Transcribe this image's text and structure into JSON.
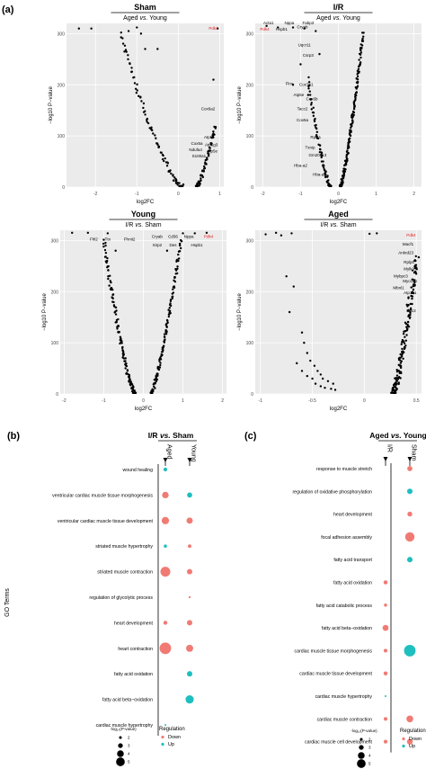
{
  "figure": {
    "panel_labels": [
      "(a)",
      "(b)",
      "(c)"
    ],
    "legend": {
      "size_title": "-log₁₀(P-value)",
      "size_levels": [
        2,
        3,
        4,
        5
      ],
      "regulation_title": "Regulation",
      "regulation_items": [
        {
          "label": "Down",
          "color": "#f07b74"
        },
        {
          "label": "Up",
          "color": "#1fbfbf"
        }
      ]
    },
    "colors": {
      "down": "#f07b74",
      "up": "#1fbfbf",
      "plot_bg": "#ebebeb",
      "grid": "#ffffff",
      "highlight": "#e41a1c"
    }
  },
  "chart_data": [
    {
      "type": "scatter",
      "id": "volcano-sham",
      "title": "Sham",
      "subtitle": "Aged vs. Young",
      "xlabel": "log2FC",
      "ylabel": "−log10 P−value",
      "xlim": [
        -2.7,
        1.1
      ],
      "ylim": [
        0,
        320
      ],
      "xticks": [
        -2,
        -1,
        0,
        1
      ],
      "yticks": [
        0,
        100,
        200,
        300
      ],
      "left_branch": {
        "x_start": -1.4,
        "x_end": 0.1,
        "count": 85,
        "y_max": 300
      },
      "right_branch": {
        "x_start": 0.45,
        "x_end": 0.9,
        "count": 60,
        "y_max": 120
      },
      "extra_points": [
        [
          -2.4,
          310
        ],
        [
          -2.1,
          310
        ],
        [
          -1.2,
          305
        ],
        [
          -1.0,
          312
        ],
        [
          -0.9,
          300
        ],
        [
          0.95,
          310
        ],
        [
          0.85,
          210
        ],
        [
          -0.8,
          270
        ],
        [
          -0.5,
          270
        ]
      ],
      "labels": [
        {
          "text": "Pdk4",
          "x": 0.85,
          "y": 308,
          "highlight": true
        },
        {
          "text": "Cox6a2",
          "x": 0.72,
          "y": 150
        },
        {
          "text": "Atp5e",
          "x": 0.75,
          "y": 95
        },
        {
          "text": "Cox5a",
          "x": 0.45,
          "y": 83
        },
        {
          "text": "Atp5g3",
          "x": 0.8,
          "y": 80
        },
        {
          "text": "Ndufa4",
          "x": 0.42,
          "y": 70
        },
        {
          "text": "Atp5e",
          "x": 0.82,
          "y": 68
        },
        {
          "text": "S100a1",
          "x": 0.5,
          "y": 58
        }
      ]
    },
    {
      "type": "scatter",
      "id": "volcano-ir",
      "title": "I/R",
      "subtitle": "Aged vs. Young",
      "xlabel": "log2FC",
      "ylabel": "−log10 P−value",
      "xlim": [
        -2.2,
        2.2
      ],
      "ylim": [
        0,
        320
      ],
      "xticks": [
        -2,
        -1,
        0,
        1,
        2
      ],
      "yticks": [
        0,
        100,
        200,
        300
      ],
      "left_branch": {
        "x_start": -0.8,
        "x_end": -0.2,
        "count": 70,
        "y_max": 210
      },
      "right_branch": {
        "x_start": 0.05,
        "x_end": 0.65,
        "count": 170,
        "y_max": 300
      },
      "extra_points": [
        [
          -1.9,
          315
        ],
        [
          -1.6,
          312
        ],
        [
          -1.2,
          312
        ],
        [
          -0.9,
          310
        ],
        [
          -0.6,
          305
        ],
        [
          -1.0,
          240
        ],
        [
          -1.2,
          200
        ],
        [
          -0.5,
          260
        ],
        [
          -0.8,
          180
        ]
      ],
      "labels": [
        {
          "text": "Acta1",
          "x": -1.85,
          "y": 318
        },
        {
          "text": "Nppa",
          "x": -1.3,
          "y": 318
        },
        {
          "text": "Fabp3",
          "x": -0.8,
          "y": 318
        },
        {
          "text": "Pdk4",
          "x": -1.95,
          "y": 306,
          "highlight": true
        },
        {
          "text": "Hspb1",
          "x": -1.5,
          "y": 306
        },
        {
          "text": "Cryab",
          "x": -0.95,
          "y": 310
        },
        {
          "text": "Uqcr11",
          "x": -0.9,
          "y": 275
        },
        {
          "text": "Csrp3",
          "x": -0.8,
          "y": 255
        },
        {
          "text": "Flnc",
          "x": -1.3,
          "y": 200
        },
        {
          "text": "Cox7a1",
          "x": -0.85,
          "y": 198
        },
        {
          "text": "Atp5e",
          "x": -1.05,
          "y": 178
        },
        {
          "text": "Cox6b",
          "x": -0.7,
          "y": 170
        },
        {
          "text": "Tacc2",
          "x": -0.95,
          "y": 150
        },
        {
          "text": "Cox5a",
          "x": -0.95,
          "y": 128
        },
        {
          "text": "Rpl41",
          "x": -0.6,
          "y": 95
        },
        {
          "text": "Txnip",
          "x": -0.75,
          "y": 75
        },
        {
          "text": "Gm20513",
          "x": -0.55,
          "y": 60
        },
        {
          "text": "Hba-a2",
          "x": -1.0,
          "y": 40
        },
        {
          "text": "Hba-a1",
          "x": -0.5,
          "y": 22
        }
      ]
    },
    {
      "type": "scatter",
      "id": "volcano-young",
      "title": "Young",
      "subtitle": "I/R vs. Sham",
      "xlabel": "log2FC",
      "ylabel": "−log10 P−value",
      "xlim": [
        -2.1,
        2.1
      ],
      "ylim": [
        0,
        320
      ],
      "xticks": [
        -2,
        -1,
        0,
        1,
        2
      ],
      "yticks": [
        0,
        100,
        200,
        300
      ],
      "left_branch": {
        "x_start": -1.0,
        "x_end": -0.2,
        "count": 130,
        "y_max": 300
      },
      "right_branch": {
        "x_start": 0.2,
        "x_end": 0.95,
        "count": 130,
        "y_max": 300
      },
      "extra_points": [
        [
          -1.8,
          315
        ],
        [
          -1.4,
          315
        ],
        [
          -0.9,
          314
        ],
        [
          1.0,
          314
        ],
        [
          1.3,
          314
        ],
        [
          1.6,
          315
        ],
        [
          -0.7,
          280
        ],
        [
          0.6,
          280
        ]
      ],
      "labels": [
        {
          "text": "Fhl2",
          "x": -1.25,
          "y": 300
        },
        {
          "text": "Ttn",
          "x": -0.9,
          "y": 300
        },
        {
          "text": "Fhnit2",
          "x": -0.35,
          "y": 300
        },
        {
          "text": "Cryab",
          "x": 0.35,
          "y": 305
        },
        {
          "text": "Cd36",
          "x": 0.75,
          "y": 305
        },
        {
          "text": "Nppa",
          "x": 1.15,
          "y": 305
        },
        {
          "text": "Pdk4",
          "x": 1.65,
          "y": 305,
          "highlight": true
        },
        {
          "text": "Xirp2",
          "x": 0.35,
          "y": 288
        },
        {
          "text": "Des",
          "x": 0.75,
          "y": 288
        },
        {
          "text": "Hspb1",
          "x": 1.35,
          "y": 288
        }
      ]
    },
    {
      "type": "scatter",
      "id": "volcano-aged",
      "title": "Aged",
      "subtitle": "I/R vs. Sham",
      "xlabel": "log2FC",
      "ylabel": "−log10 P−value",
      "xlim": [
        -1.05,
        0.55
      ],
      "ylim": [
        0,
        320
      ],
      "xticks": [
        -1.0,
        -0.5,
        0.0,
        0.5
      ],
      "yticks": [
        0,
        100,
        200,
        300
      ],
      "left_branch": {
        "x_start": -0.4,
        "x_end": -0.3,
        "count": 0,
        "y_max": 0
      },
      "right_branch": {
        "x_start": 0.28,
        "x_end": 0.5,
        "count": 160,
        "y_max": 270
      },
      "extra_points": [
        [
          -0.95,
          312
        ],
        [
          -0.85,
          315
        ],
        [
          -0.8,
          310
        ],
        [
          -0.7,
          314
        ],
        [
          -0.75,
          230
        ],
        [
          -0.68,
          210
        ],
        [
          -0.72,
          160
        ],
        [
          -0.6,
          120
        ],
        [
          -0.58,
          100
        ],
        [
          -0.55,
          80
        ],
        [
          -0.52,
          65
        ],
        [
          -0.48,
          55
        ],
        [
          -0.45,
          45
        ],
        [
          -0.42,
          38
        ],
        [
          -0.4,
          30
        ],
        [
          -0.35,
          25
        ],
        [
          -0.3,
          20
        ],
        [
          -0.5,
          30
        ],
        [
          -0.47,
          20
        ],
        [
          -0.42,
          15
        ],
        [
          -0.38,
          12
        ],
        [
          -0.32,
          10
        ],
        [
          -0.28,
          8
        ],
        [
          -0.6,
          45
        ],
        [
          -0.65,
          60
        ],
        [
          -0.55,
          35
        ],
        [
          0.05,
          313
        ],
        [
          0.12,
          314
        ]
      ],
      "labels": [
        {
          "text": "Pdk4",
          "x": 0.45,
          "y": 308,
          "highlight": true
        },
        {
          "text": "Macf1",
          "x": 0.42,
          "y": 290
        },
        {
          "text": "Ankrd23",
          "x": 0.4,
          "y": 273
        },
        {
          "text": "Rplp0",
          "x": 0.43,
          "y": 255
        },
        {
          "text": "Mylk3",
          "x": 0.43,
          "y": 242
        },
        {
          "text": "Mybpc3",
          "x": 0.35,
          "y": 228
        },
        {
          "text": "Myo18b",
          "x": 0.44,
          "y": 218
        },
        {
          "text": "Mbnl1",
          "x": 0.33,
          "y": 205
        },
        {
          "text": "Atp1a1",
          "x": 0.44,
          "y": 195
        },
        {
          "text": "Cox3",
          "x": 0.45,
          "y": 160
        }
      ]
    },
    {
      "type": "scatter",
      "id": "go-ir-sham",
      "subtitle": "I/R vs. Sham",
      "ylabel": "GO Terms",
      "columns": [
        "Aged",
        "Young"
      ],
      "terms": [
        "wound healing",
        "ventricular cardiac muscle tissue morphogenesis",
        "ventricular cardiac muscle tissue development",
        "striated muscle hypertrophy",
        "striated muscle contraction",
        "regulation of glycolytic process",
        "heart development",
        "heart contraction",
        "fatty acid oxidation",
        "fatty acid beta−oxidation",
        "cardiac muscle hypertrophy"
      ],
      "points": [
        {
          "term": "wound healing",
          "column": "Aged",
          "pvalue_log": 2.2,
          "regulation": "Up"
        },
        {
          "term": "ventricular cardiac muscle tissue morphogenesis",
          "column": "Aged",
          "pvalue_log": 3.2,
          "regulation": "Down"
        },
        {
          "term": "ventricular cardiac muscle tissue morphogenesis",
          "column": "Young",
          "pvalue_log": 2.7,
          "regulation": "Up"
        },
        {
          "term": "ventricular cardiac muscle tissue development",
          "column": "Aged",
          "pvalue_log": 3.5,
          "regulation": "Down"
        },
        {
          "term": "ventricular cardiac muscle tissue development",
          "column": "Young",
          "pvalue_log": 3.1,
          "regulation": "Down"
        },
        {
          "term": "striated muscle hypertrophy",
          "column": "Aged",
          "pvalue_log": 2.0,
          "regulation": "Up"
        },
        {
          "term": "striated muscle hypertrophy",
          "column": "Young",
          "pvalue_log": 2.1,
          "regulation": "Down"
        },
        {
          "term": "striated muscle contraction",
          "column": "Aged",
          "pvalue_log": 4.4,
          "regulation": "Down"
        },
        {
          "term": "striated muscle contraction",
          "column": "Young",
          "pvalue_log": 2.8,
          "regulation": "Down"
        },
        {
          "term": "regulation of glycolytic process",
          "column": "Young",
          "pvalue_log": 1.6,
          "regulation": "Down"
        },
        {
          "term": "heart development",
          "column": "Aged",
          "pvalue_log": 2.3,
          "regulation": "Down"
        },
        {
          "term": "heart development",
          "column": "Young",
          "pvalue_log": 2.8,
          "regulation": "Down"
        },
        {
          "term": "heart contraction",
          "column": "Aged",
          "pvalue_log": 5.0,
          "regulation": "Down"
        },
        {
          "term": "heart contraction",
          "column": "Young",
          "pvalue_log": 3.4,
          "regulation": "Down"
        },
        {
          "term": "fatty acid oxidation",
          "column": "Young",
          "pvalue_log": 2.8,
          "regulation": "Up"
        },
        {
          "term": "fatty acid beta−oxidation",
          "column": "Young",
          "pvalue_log": 3.8,
          "regulation": "Up"
        },
        {
          "term": "cardiac muscle hypertrophy",
          "column": "Aged",
          "pvalue_log": 1.5,
          "regulation": "Up"
        }
      ]
    },
    {
      "type": "scatter",
      "id": "go-aged-young",
      "subtitle": "Aged vs. Young",
      "columns": [
        "I/R",
        "Sham"
      ],
      "terms": [
        "response to muscle stretch",
        "regulation of oxidative phosphorylation",
        "heart development",
        "focal adhesion assembly",
        "fatty acid transport",
        "fatty acid oxidation",
        "fatty acid catabolic process",
        "fatty acid beta−oxidation",
        "cardiac muscle tissue morphogenesis",
        "cardiac muscle tissue development",
        "cardiac muscle hypertrophy",
        "cardiac muscle contraction",
        "cardiac muscle cell development"
      ],
      "points": [
        {
          "term": "response to muscle stretch",
          "column": "Sham",
          "pvalue_log": 2.7,
          "regulation": "Down"
        },
        {
          "term": "regulation of oxidative phosphorylation",
          "column": "Sham",
          "pvalue_log": 2.8,
          "regulation": "Up"
        },
        {
          "term": "heart development",
          "column": "Sham",
          "pvalue_log": 2.6,
          "regulation": "Down"
        },
        {
          "term": "focal adhesion assembly",
          "column": "Sham",
          "pvalue_log": 4.2,
          "regulation": "Down"
        },
        {
          "term": "fatty acid transport",
          "column": "Sham",
          "pvalue_log": 2.8,
          "regulation": "Up"
        },
        {
          "term": "fatty acid oxidation",
          "column": "I/R",
          "pvalue_log": 2.3,
          "regulation": "Down"
        },
        {
          "term": "fatty acid catabolic process",
          "column": "I/R",
          "pvalue_log": 2.0,
          "regulation": "Down"
        },
        {
          "term": "fatty acid beta−oxidation",
          "column": "I/R",
          "pvalue_log": 3.0,
          "regulation": "Down"
        },
        {
          "term": "cardiac muscle tissue morphogenesis",
          "column": "I/R",
          "pvalue_log": 2.2,
          "regulation": "Down"
        },
        {
          "term": "cardiac muscle tissue morphogenesis",
          "column": "Sham",
          "pvalue_log": 5.0,
          "regulation": "Up"
        },
        {
          "term": "cardiac muscle tissue development",
          "column": "I/R",
          "pvalue_log": 2.3,
          "regulation": "Down"
        },
        {
          "term": "cardiac muscle hypertrophy",
          "column": "I/R",
          "pvalue_log": 1.5,
          "regulation": "Up"
        },
        {
          "term": "cardiac muscle contraction",
          "column": "I/R",
          "pvalue_log": 2.2,
          "regulation": "Down"
        },
        {
          "term": "cardiac muscle contraction",
          "column": "Sham",
          "pvalue_log": 3.3,
          "regulation": "Down"
        },
        {
          "term": "cardiac muscle cell development",
          "column": "I/R",
          "pvalue_log": 2.2,
          "regulation": "Down"
        },
        {
          "term": "cardiac muscle cell development",
          "column": "Sham",
          "pvalue_log": 2.9,
          "regulation": "Down"
        }
      ]
    }
  ]
}
